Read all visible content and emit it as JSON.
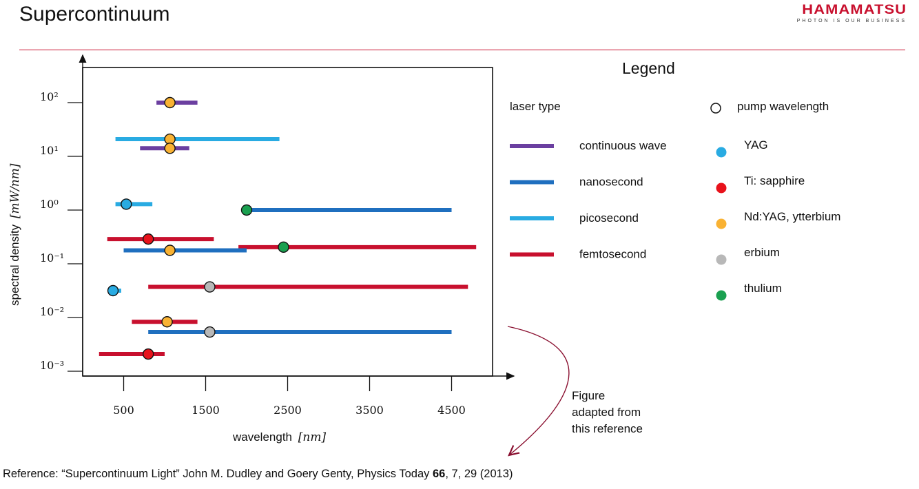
{
  "slide": {
    "title": "Supercontinuum",
    "brand": {
      "name": "HAMAMATSU",
      "tagline": "PHOTON IS OUR BUSINESS"
    },
    "note": [
      "Figure",
      "adapted from",
      "this reference"
    ],
    "reference": {
      "prefix": "Reference: “Supercontinuum Light” John M. Dudley and Goery Genty, Physics Today ",
      "volume": "66",
      "suffix": ", 7, 29 (2013)"
    }
  },
  "chart_data": {
    "type": "scatter",
    "xlabel": "wavelength",
    "xlabel_unit": "[nm]",
    "ylabel": "spectral density",
    "ylabel_unit": "[mW/nm]",
    "x_ticks": [
      500,
      1500,
      2500,
      3500,
      4500
    ],
    "y_ticks": [
      "10²",
      "10¹",
      "10⁰",
      "10⁻¹",
      "10⁻²",
      "10⁻³"
    ],
    "y_tick_values": [
      2,
      1,
      0,
      -1,
      -2,
      -3
    ],
    "xlim": [
      0,
      5000
    ],
    "ylog_range": [
      -3,
      2.5
    ],
    "log_scale_y": true,
    "colors": {
      "continuous wave": "#6b3fa0",
      "nanosecond": "#1f6fbf",
      "picosecond": "#29abe2",
      "femtosecond": "#c8102e",
      "YAG": "#29abe2",
      "Ti: sapphire": "#e8121b",
      "Nd:YAG, ytterbium": "#f9b233",
      "erbium": "#b8b8b8",
      "thulium": "#1aa050"
    },
    "entries": [
      {
        "laser": "continuous wave",
        "pump": "Nd:YAG, ytterbium",
        "x_start": 900,
        "x_end": 1400,
        "pump_x": 1064,
        "log_y": 2.0
      },
      {
        "laser": "picosecond",
        "pump": "Nd:YAG, ytterbium",
        "x_start": 400,
        "x_end": 2400,
        "pump_x": 1064,
        "log_y": 1.32
      },
      {
        "laser": "continuous wave",
        "pump": "Nd:YAG, ytterbium",
        "x_start": 700,
        "x_end": 1300,
        "pump_x": 1064,
        "log_y": 1.15
      },
      {
        "laser": "picosecond",
        "pump": "YAG",
        "x_start": 400,
        "x_end": 850,
        "pump_x": 532,
        "log_y": 0.11
      },
      {
        "laser": "nanosecond",
        "pump": "thulium",
        "x_start": 2000,
        "x_end": 4500,
        "pump_x": 2000,
        "log_y": 0.0
      },
      {
        "laser": "femtosecond",
        "pump": "Ti: sapphire",
        "x_start": 300,
        "x_end": 1600,
        "pump_x": 800,
        "log_y": -0.54
      },
      {
        "laser": "femtosecond",
        "pump": "thulium",
        "x_start": 1900,
        "x_end": 4800,
        "pump_x": 2450,
        "log_y": -0.69
      },
      {
        "laser": "nanosecond",
        "pump": "Nd:YAG, ytterbium",
        "x_start": 500,
        "x_end": 2000,
        "pump_x": 1064,
        "log_y": -0.75
      },
      {
        "laser": "femtosecond",
        "pump": "erbium",
        "x_start": 800,
        "x_end": 4700,
        "pump_x": 1550,
        "log_y": -1.43
      },
      {
        "laser": "picosecond",
        "pump": "YAG",
        "x_start": 350,
        "x_end": 470,
        "pump_x": 370,
        "log_y": -1.5
      },
      {
        "laser": "femtosecond",
        "pump": "Nd:YAG, ytterbium",
        "x_start": 600,
        "x_end": 1400,
        "pump_x": 1030,
        "log_y": -2.08
      },
      {
        "laser": "nanosecond",
        "pump": "erbium",
        "x_start": 800,
        "x_end": 4500,
        "pump_x": 1550,
        "log_y": -2.27
      },
      {
        "laser": "femtosecond",
        "pump": "Ti: sapphire",
        "x_start": 200,
        "x_end": 1000,
        "pump_x": 800,
        "log_y": -2.68
      }
    ],
    "legend": {
      "title": "Legend",
      "laser_heading": "laser type",
      "pump_heading": "pump wavelength",
      "laser_types": [
        "continuous wave",
        "nanosecond",
        "picosecond",
        "femtosecond"
      ],
      "pump_sources": [
        "YAG",
        "Ti: sapphire",
        "Nd:YAG, ytterbium",
        "erbium",
        "thulium"
      ]
    }
  }
}
